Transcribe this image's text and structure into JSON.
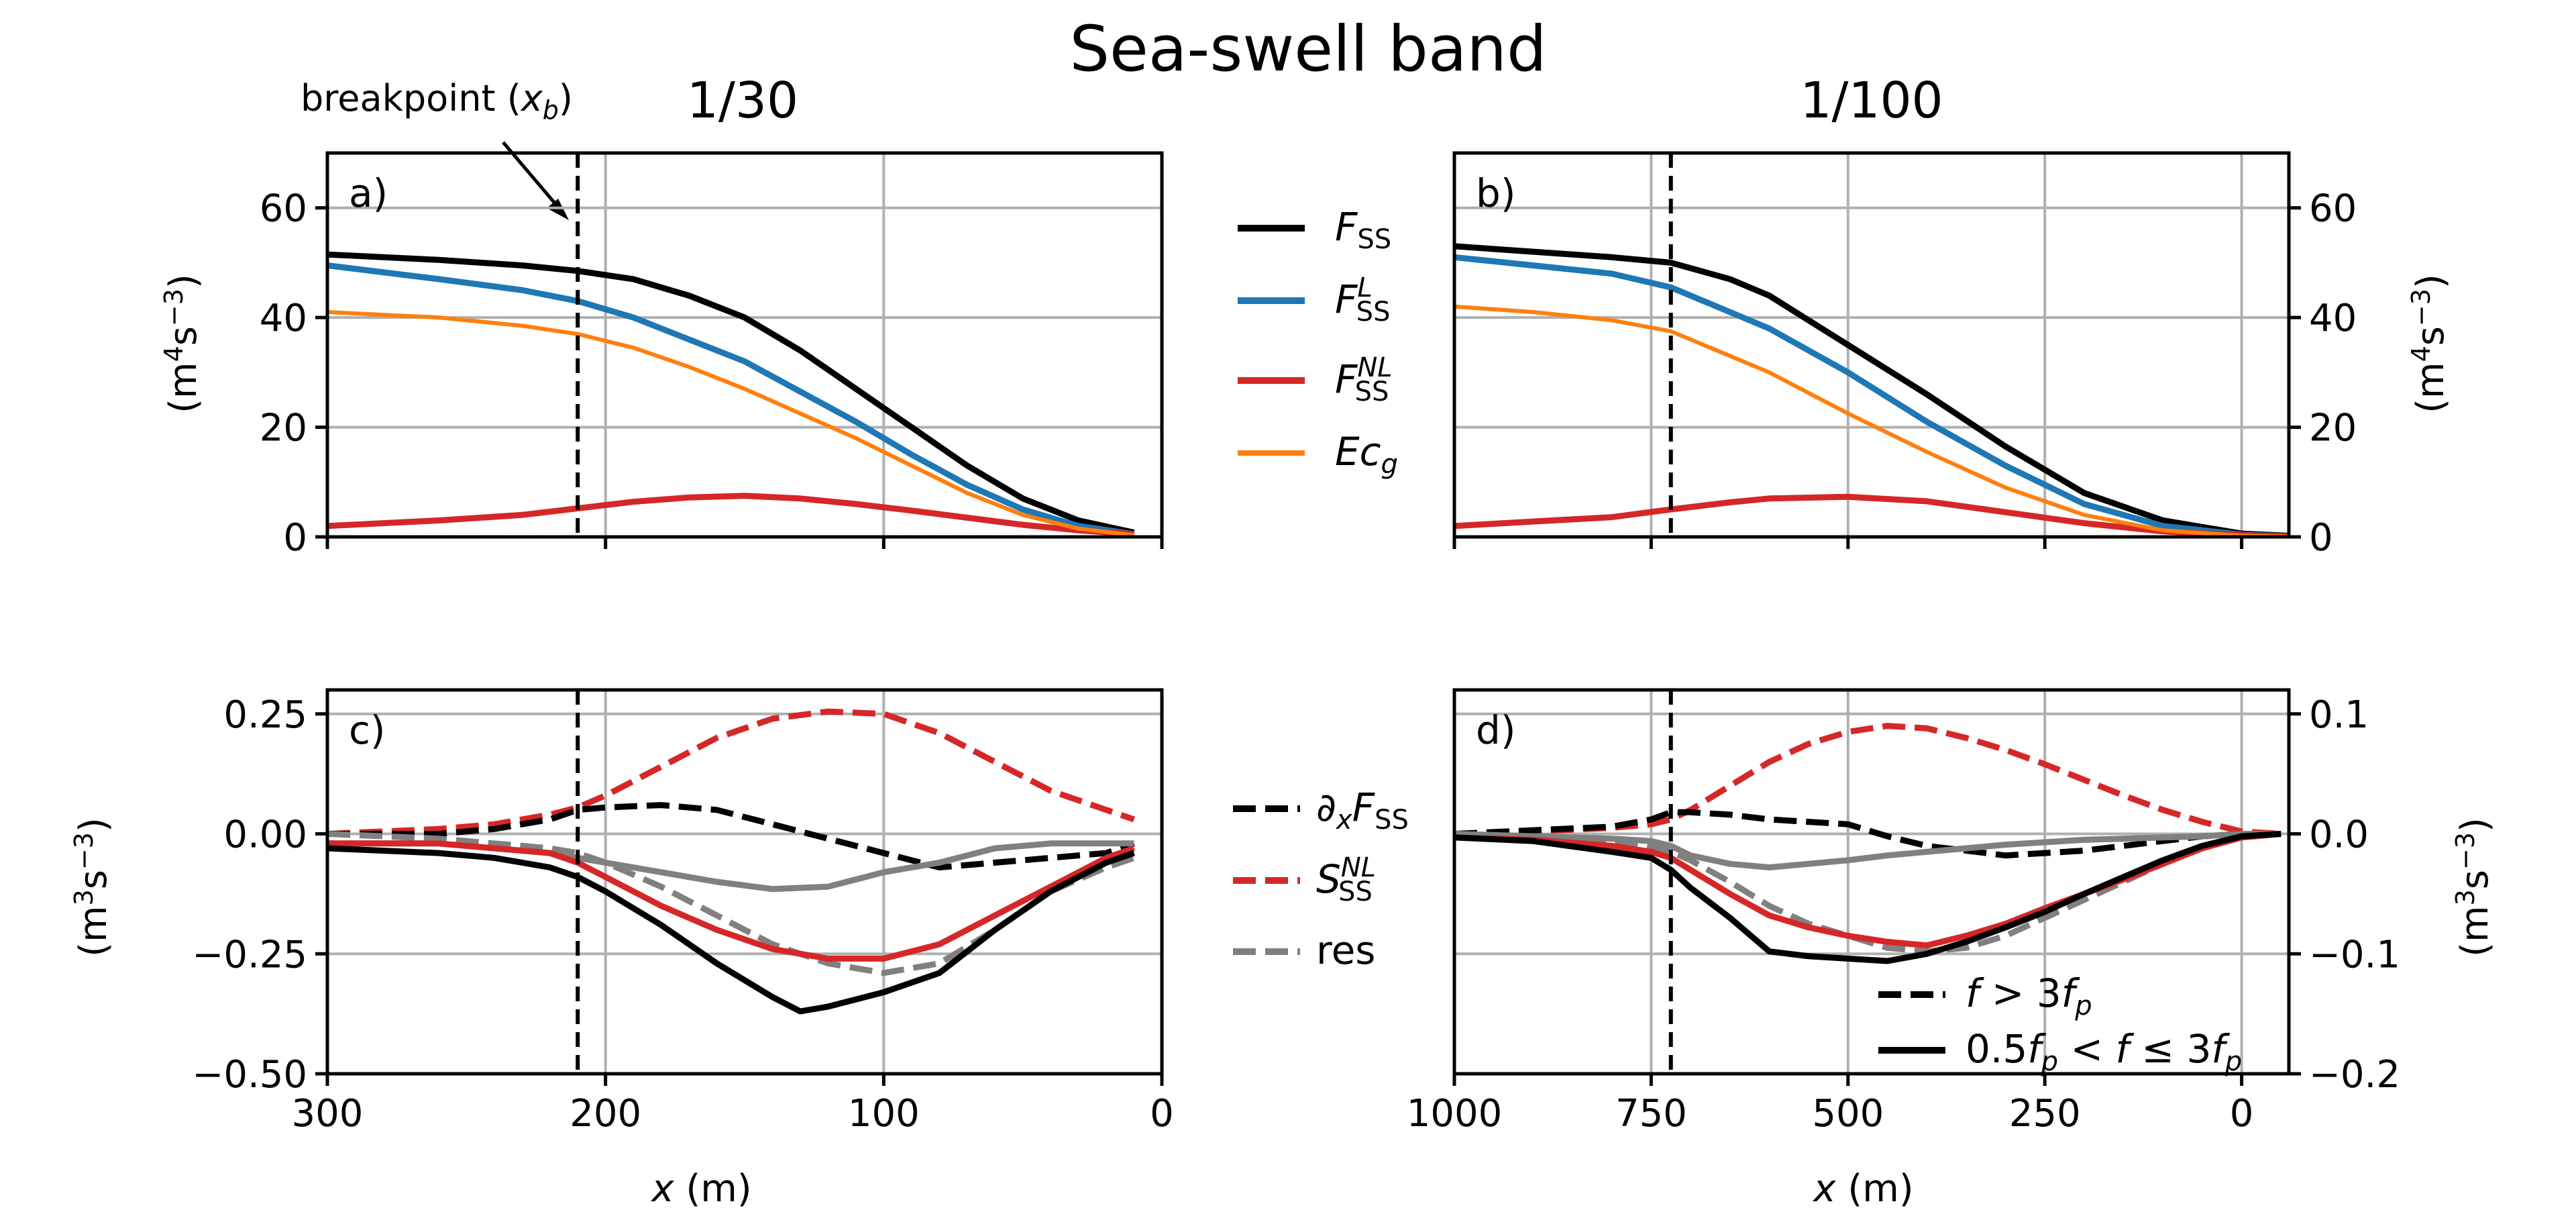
{
  "figure": {
    "suptitle": "Sea-swell band",
    "annotation_breakpoint": "breakpoint (x_b)",
    "panels": {
      "a": {
        "label": "a)",
        "title": "1/30",
        "ylabel": "(m⁴s⁻³)"
      },
      "b": {
        "label": "b)",
        "title": "1/100",
        "ylabel": "(m⁴s⁻³)"
      },
      "c": {
        "label": "c)",
        "ylabel": "(m³s⁻³)",
        "xlabel": "x (m)"
      },
      "d": {
        "label": "d)",
        "ylabel": "(m³s⁻³)",
        "xlabel": "x (m)"
      }
    },
    "legend_top": [
      "F_SS",
      "F_SS^L",
      "F_SS^NL",
      "Ec_g"
    ],
    "legend_bottom": [
      "∂xF_SS",
      "S_SS^NL",
      "res"
    ],
    "legend_style": [
      "f > 3f_p",
      "0.5f_p < f ≤ 3f_p"
    ]
  },
  "colors": {
    "F": "#000000",
    "FL": "#1f77b4",
    "FNL": "#d62728",
    "Ecg": "#ff7f0e",
    "res": "#808080",
    "grid": "#b0b0b0"
  },
  "chart_data": [
    {
      "panel": "a",
      "type": "line",
      "x_reversed": true,
      "xlim": [
        300,
        0
      ],
      "ylim": [
        0,
        70
      ],
      "xticks": [
        300,
        200,
        100,
        0
      ],
      "yticks": [
        0,
        20,
        40,
        60
      ],
      "ytick_labels": [
        "0",
        "20",
        "40",
        "60"
      ],
      "breakpoint_x": 210,
      "series": [
        {
          "name": "F_SS",
          "color": "#000000",
          "width": 9,
          "x": [
            300,
            260,
            230,
            210,
            190,
            170,
            150,
            130,
            110,
            90,
            70,
            50,
            30,
            10
          ],
          "y": [
            51.5,
            50.5,
            49.5,
            48.5,
            47,
            44,
            40,
            34,
            27,
            20,
            13,
            7,
            3,
            0.8
          ]
        },
        {
          "name": "F_SS^L",
          "color": "#1f77b4",
          "width": 9,
          "x": [
            300,
            260,
            230,
            210,
            190,
            170,
            150,
            130,
            110,
            90,
            70,
            50,
            30,
            10
          ],
          "y": [
            49.5,
            47,
            45,
            43,
            40,
            36,
            32,
            26.5,
            21,
            15,
            9.5,
            5,
            2,
            0.5
          ]
        },
        {
          "name": "F_SS^NL",
          "color": "#d62728",
          "width": 9,
          "x": [
            300,
            260,
            230,
            210,
            190,
            170,
            150,
            130,
            110,
            90,
            70,
            50,
            30,
            10
          ],
          "y": [
            2,
            3,
            4,
            5.2,
            6.4,
            7.2,
            7.5,
            7,
            6,
            4.8,
            3.5,
            2.2,
            1.2,
            0.5
          ]
        },
        {
          "name": "Ec_g",
          "color": "#ff7f0e",
          "width": 6,
          "x": [
            300,
            260,
            230,
            210,
            190,
            170,
            150,
            130,
            110,
            90,
            70,
            50,
            30,
            10
          ],
          "y": [
            41,
            40,
            38.5,
            37,
            34.5,
            31,
            27,
            22.5,
            18,
            13,
            8,
            4,
            1.5,
            0.3
          ]
        }
      ]
    },
    {
      "panel": "b",
      "type": "line",
      "x_reversed": true,
      "xlim": [
        1000,
        -60
      ],
      "ylim": [
        0,
        70
      ],
      "xticks": [
        1000,
        750,
        500,
        250,
        0
      ],
      "yticks": [
        0,
        20,
        40,
        60
      ],
      "ytick_labels": [
        "0",
        "20",
        "40",
        "60"
      ],
      "breakpoint_x": 725,
      "series": [
        {
          "name": "F_SS",
          "color": "#000000",
          "width": 9,
          "x": [
            1000,
            900,
            800,
            725,
            650,
            600,
            500,
            400,
            300,
            200,
            100,
            0,
            -60
          ],
          "y": [
            53,
            52,
            51,
            50,
            47,
            44,
            35,
            26,
            16.5,
            8,
            3,
            0.6,
            0.2
          ]
        },
        {
          "name": "F_SS^L",
          "color": "#1f77b4",
          "width": 9,
          "x": [
            1000,
            900,
            800,
            725,
            650,
            600,
            500,
            400,
            300,
            200,
            100,
            0,
            -60
          ],
          "y": [
            51,
            49.5,
            48,
            45.5,
            41,
            38,
            30,
            21,
            13,
            6,
            2,
            0.4,
            0.1
          ]
        },
        {
          "name": "F_SS^NL",
          "color": "#d62728",
          "width": 9,
          "x": [
            1000,
            900,
            800,
            725,
            650,
            600,
            500,
            400,
            300,
            200,
            100,
            0,
            -60
          ],
          "y": [
            2,
            2.8,
            3.6,
            5,
            6.3,
            7,
            7.3,
            6.5,
            4.5,
            2.5,
            1,
            0.3,
            0.1
          ]
        },
        {
          "name": "Ec_g",
          "color": "#ff7f0e",
          "width": 6,
          "x": [
            1000,
            900,
            800,
            725,
            650,
            600,
            500,
            400,
            300,
            200,
            100,
            0,
            -60
          ],
          "y": [
            42,
            41,
            39.5,
            37.5,
            33,
            30,
            22.5,
            15.5,
            9,
            4,
            1.2,
            0.2,
            0.05
          ]
        }
      ]
    },
    {
      "panel": "c",
      "type": "line",
      "x_reversed": true,
      "xlim": [
        300,
        0
      ],
      "ylim": [
        -0.5,
        0.3
      ],
      "xticks": [
        300,
        200,
        100,
        0
      ],
      "yticks": [
        -0.5,
        -0.25,
        0,
        0.25
      ],
      "ytick_labels": [
        "−0.50",
        "−0.25",
        "0.00",
        "0.25"
      ],
      "xtick_labels": [
        "300",
        "200",
        "100",
        "0"
      ],
      "breakpoint_x": 210,
      "series": [
        {
          "name": "S_SS^NL (f > 3f_p)",
          "color": "#d62728",
          "width": 9,
          "dash": true,
          "x": [
            300,
            260,
            240,
            220,
            210,
            200,
            180,
            160,
            140,
            120,
            100,
            80,
            60,
            40,
            20,
            10
          ],
          "y": [
            0.0,
            0.01,
            0.02,
            0.04,
            0.055,
            0.08,
            0.14,
            0.2,
            0.24,
            0.255,
            0.25,
            0.21,
            0.15,
            0.09,
            0.05,
            0.03
          ]
        },
        {
          "name": "∂xF_SS (f > 3f_p)",
          "color": "#000000",
          "width": 9,
          "dash": true,
          "x": [
            300,
            260,
            240,
            220,
            210,
            200,
            180,
            160,
            140,
            120,
            100,
            80,
            60,
            40,
            20,
            10
          ],
          "y": [
            0.0,
            0.0,
            0.01,
            0.03,
            0.05,
            0.055,
            0.06,
            0.05,
            0.02,
            -0.01,
            -0.04,
            -0.07,
            -0.06,
            -0.05,
            -0.04,
            -0.02
          ]
        },
        {
          "name": "res (f > 3f_p)",
          "color": "#808080",
          "width": 9,
          "dash": true,
          "x": [
            300,
            260,
            240,
            220,
            210,
            200,
            180,
            160,
            140,
            120,
            100,
            80,
            60,
            40,
            20,
            10
          ],
          "y": [
            0.0,
            -0.01,
            -0.02,
            -0.03,
            -0.04,
            -0.06,
            -0.11,
            -0.17,
            -0.23,
            -0.27,
            -0.29,
            -0.27,
            -0.2,
            -0.12,
            -0.07,
            -0.05
          ]
        },
        {
          "name": "res (0.5f_p < f ≤ 3f_p)",
          "color": "#808080",
          "width": 9,
          "x": [
            300,
            260,
            240,
            220,
            210,
            200,
            180,
            160,
            140,
            120,
            100,
            80,
            60,
            40,
            20,
            10
          ],
          "y": [
            -0.02,
            -0.02,
            -0.03,
            -0.04,
            -0.05,
            -0.06,
            -0.08,
            -0.1,
            -0.115,
            -0.11,
            -0.08,
            -0.06,
            -0.03,
            -0.02,
            -0.02,
            -0.02
          ]
        },
        {
          "name": "S_SS^NL (0.5f_p < f ≤ 3f_p)",
          "color": "#d62728",
          "width": 9,
          "x": [
            300,
            260,
            240,
            220,
            210,
            200,
            180,
            160,
            140,
            120,
            100,
            80,
            60,
            40,
            20,
            10
          ],
          "y": [
            -0.02,
            -0.02,
            -0.03,
            -0.04,
            -0.06,
            -0.09,
            -0.15,
            -0.2,
            -0.24,
            -0.26,
            -0.26,
            -0.23,
            -0.17,
            -0.11,
            -0.05,
            -0.03
          ]
        },
        {
          "name": "∂xF_SS (0.5f_p < f ≤ 3f_p)",
          "color": "#000000",
          "width": 9,
          "x": [
            300,
            260,
            240,
            220,
            210,
            200,
            180,
            160,
            140,
            130,
            120,
            100,
            80,
            60,
            40,
            20,
            10
          ],
          "y": [
            -0.03,
            -0.04,
            -0.05,
            -0.07,
            -0.09,
            -0.12,
            -0.19,
            -0.27,
            -0.34,
            -0.37,
            -0.36,
            -0.33,
            -0.29,
            -0.2,
            -0.12,
            -0.06,
            -0.04
          ]
        }
      ]
    },
    {
      "panel": "d",
      "type": "line",
      "x_reversed": true,
      "xlim": [
        1000,
        -60
      ],
      "ylim": [
        -0.2,
        0.12
      ],
      "xticks": [
        1000,
        750,
        500,
        250,
        0
      ],
      "yticks": [
        -0.2,
        -0.1,
        0,
        0.1
      ],
      "ytick_labels": [
        "−0.2",
        "−0.1",
        "0.0",
        "0.1"
      ],
      "xtick_labels": [
        "1000",
        "750",
        "500",
        "250",
        "0"
      ],
      "breakpoint_x": 725,
      "series": [
        {
          "name": "S_SS^NL (f > 3f_p)",
          "color": "#d62728",
          "width": 9,
          "dash": true,
          "x": [
            1000,
            900,
            800,
            750,
            725,
            700,
            650,
            600,
            550,
            500,
            450,
            400,
            350,
            300,
            250,
            200,
            150,
            100,
            50,
            0,
            -50
          ],
          "y": [
            0.0,
            0.002,
            0.005,
            0.008,
            0.012,
            0.02,
            0.04,
            0.06,
            0.075,
            0.085,
            0.09,
            0.088,
            0.08,
            0.07,
            0.058,
            0.045,
            0.032,
            0.02,
            0.01,
            0.002,
            0.0
          ]
        },
        {
          "name": "∂xF_SS (f > 3f_p)",
          "color": "#000000",
          "width": 9,
          "dash": true,
          "x": [
            1000,
            900,
            800,
            750,
            725,
            700,
            650,
            600,
            550,
            500,
            450,
            400,
            350,
            300,
            250,
            200,
            150,
            100,
            50,
            0,
            -50
          ],
          "y": [
            0.0,
            0.003,
            0.006,
            0.012,
            0.018,
            0.018,
            0.016,
            0.012,
            0.01,
            0.008,
            -0.002,
            -0.01,
            -0.014,
            -0.018,
            -0.016,
            -0.014,
            -0.01,
            -0.006,
            -0.002,
            0.0,
            0.0
          ]
        },
        {
          "name": "res (f > 3f_p)",
          "color": "#808080",
          "width": 9,
          "dash": true,
          "x": [
            1000,
            900,
            800,
            750,
            725,
            700,
            650,
            600,
            550,
            500,
            450,
            400,
            350,
            300,
            250,
            200,
            150,
            100,
            50,
            0,
            -50
          ],
          "y": [
            0.0,
            -0.003,
            -0.006,
            -0.01,
            -0.015,
            -0.022,
            -0.04,
            -0.06,
            -0.075,
            -0.085,
            -0.095,
            -0.098,
            -0.095,
            -0.085,
            -0.07,
            -0.055,
            -0.04,
            -0.025,
            -0.012,
            -0.003,
            0.0
          ]
        },
        {
          "name": "res (0.5f_p < f ≤ 3f_p)",
          "color": "#808080",
          "width": 9,
          "x": [
            1000,
            900,
            800,
            750,
            725,
            700,
            650,
            600,
            550,
            500,
            450,
            400,
            350,
            300,
            250,
            200,
            150,
            100,
            50,
            0,
            -50
          ],
          "y": [
            0.0,
            -0.002,
            -0.004,
            -0.006,
            -0.01,
            -0.018,
            -0.025,
            -0.028,
            -0.025,
            -0.022,
            -0.018,
            -0.015,
            -0.012,
            -0.009,
            -0.007,
            -0.005,
            -0.004,
            -0.003,
            -0.002,
            0.0,
            0.0
          ]
        },
        {
          "name": "S_SS^NL (0.5f_p < f ≤ 3f_p)",
          "color": "#d62728",
          "width": 9,
          "x": [
            1000,
            900,
            800,
            750,
            725,
            700,
            650,
            600,
            550,
            500,
            450,
            400,
            350,
            300,
            250,
            200,
            150,
            100,
            50,
            0,
            -50
          ],
          "y": [
            -0.003,
            -0.005,
            -0.01,
            -0.015,
            -0.02,
            -0.03,
            -0.05,
            -0.068,
            -0.078,
            -0.085,
            -0.09,
            -0.093,
            -0.085,
            -0.075,
            -0.062,
            -0.05,
            -0.038,
            -0.025,
            -0.012,
            -0.003,
            0.0
          ]
        },
        {
          "name": "∂xF_SS (0.5f_p < f ≤ 3f_p)",
          "color": "#000000",
          "width": 9,
          "x": [
            1000,
            900,
            800,
            750,
            725,
            700,
            650,
            600,
            550,
            500,
            450,
            400,
            350,
            300,
            250,
            200,
            150,
            100,
            50,
            0,
            -50
          ],
          "y": [
            -0.003,
            -0.006,
            -0.015,
            -0.02,
            -0.03,
            -0.045,
            -0.07,
            -0.098,
            -0.102,
            -0.104,
            -0.106,
            -0.1,
            -0.09,
            -0.078,
            -0.065,
            -0.05,
            -0.036,
            -0.022,
            -0.01,
            -0.002,
            0.0
          ]
        }
      ]
    }
  ]
}
